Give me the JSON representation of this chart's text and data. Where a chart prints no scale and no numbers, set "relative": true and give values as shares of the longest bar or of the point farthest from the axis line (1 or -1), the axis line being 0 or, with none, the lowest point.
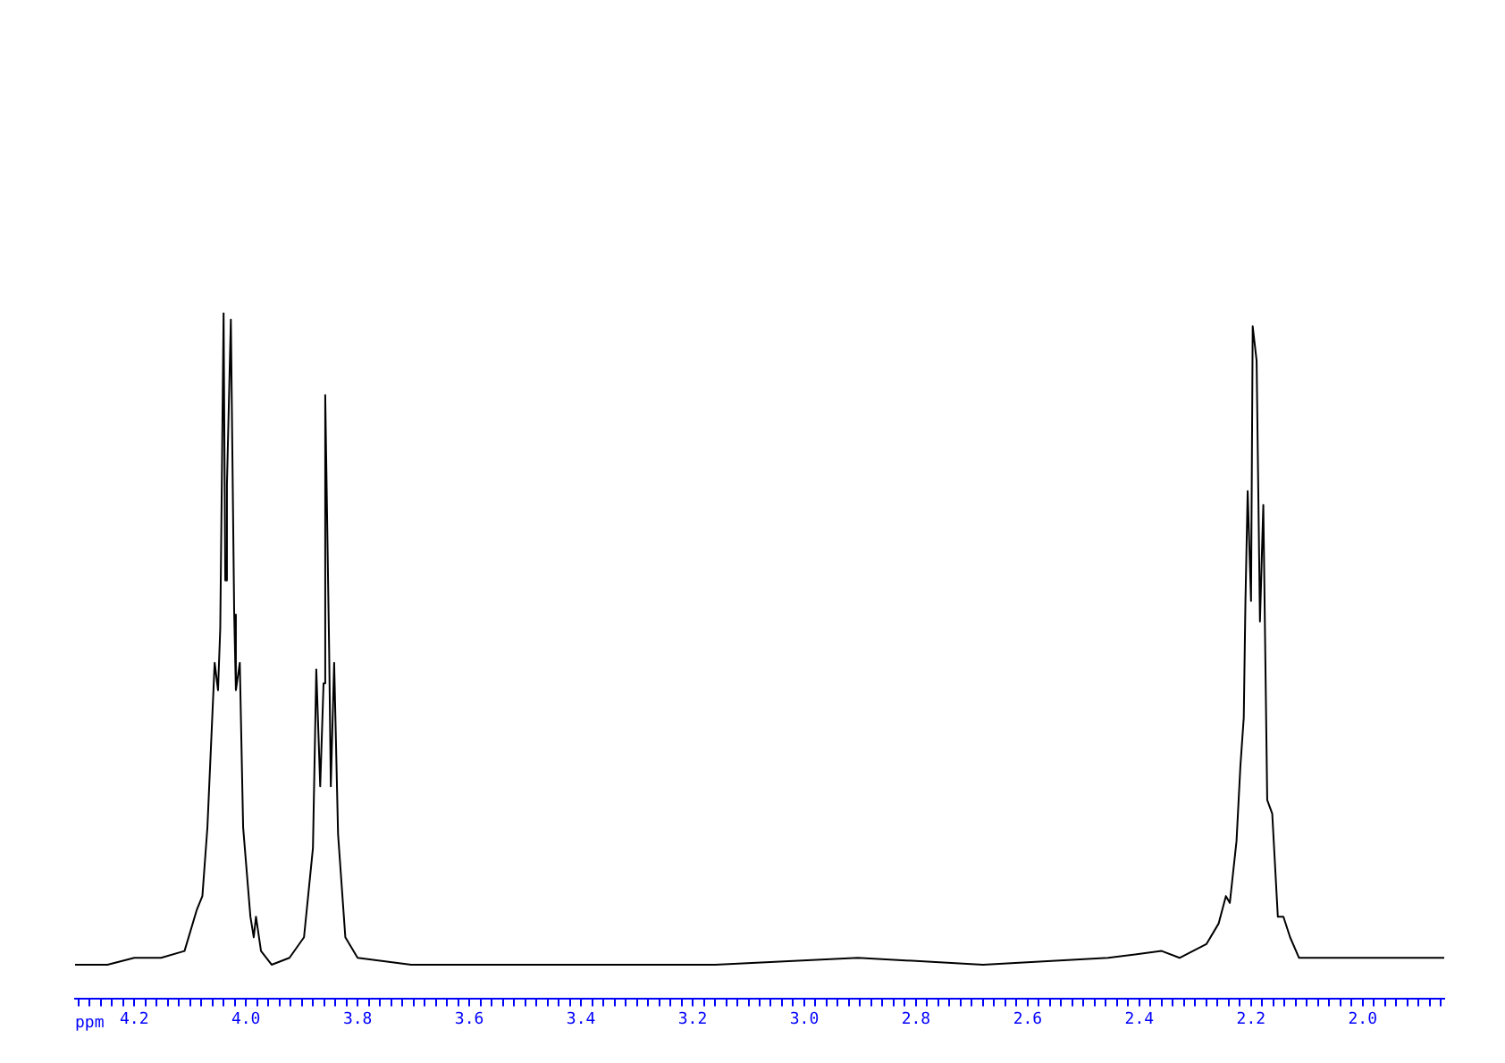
{
  "chart_data": {
    "type": "line",
    "relative": true,
    "xlabel": "ppm",
    "legend": false,
    "grid": false,
    "marker": "none",
    "line_style": "solid",
    "tick_labels": "x",
    "xlim": [
      4.306,
      1.854
    ],
    "xticks": [
      {
        "value": 4.3,
        "label": null
      },
      {
        "value": 4.28,
        "label": null
      },
      {
        "value": 4.26,
        "label": null
      },
      {
        "value": 4.24,
        "label": null
      },
      {
        "value": 4.22,
        "label": null
      },
      4.2,
      {
        "value": 4.18,
        "label": null
      },
      {
        "value": 4.16,
        "label": null
      },
      {
        "value": 4.14,
        "label": null
      },
      {
        "value": 4.12,
        "label": null
      },
      {
        "value": 4.1,
        "label": null
      },
      {
        "value": 4.08,
        "label": null
      },
      {
        "value": 4.06,
        "label": null
      },
      {
        "value": 4.04,
        "label": null
      },
      {
        "value": 4.02,
        "label": null
      },
      {
        "value": 4.0,
        "label": "4.0"
      },
      {
        "value": 3.98,
        "label": null
      },
      {
        "value": 3.96,
        "label": null
      },
      {
        "value": 3.94,
        "label": null
      },
      {
        "value": 3.92,
        "label": null
      },
      {
        "value": 3.9,
        "label": null
      },
      {
        "value": 3.88,
        "label": null
      },
      {
        "value": 3.86,
        "label": null
      },
      {
        "value": 3.84,
        "label": null
      },
      {
        "value": 3.82,
        "label": null
      },
      3.8,
      {
        "value": 3.78,
        "label": null
      },
      {
        "value": 3.76,
        "label": null
      },
      {
        "value": 3.74,
        "label": null
      },
      {
        "value": 3.72,
        "label": null
      },
      {
        "value": 3.7,
        "label": null
      },
      {
        "value": 3.68,
        "label": null
      },
      {
        "value": 3.66,
        "label": null
      },
      {
        "value": 3.64,
        "label": null
      },
      {
        "value": 3.62,
        "label": null
      },
      3.6,
      {
        "value": 3.58,
        "label": null
      },
      {
        "value": 3.56,
        "label": null
      },
      {
        "value": 3.54,
        "label": null
      },
      {
        "value": 3.52,
        "label": null
      },
      {
        "value": 3.5,
        "label": null
      },
      {
        "value": 3.48,
        "label": null
      },
      {
        "value": 3.46,
        "label": null
      },
      {
        "value": 3.44,
        "label": null
      },
      {
        "value": 3.42,
        "label": null
      },
      3.4,
      {
        "value": 3.38,
        "label": null
      },
      {
        "value": 3.36,
        "label": null
      },
      {
        "value": 3.34,
        "label": null
      },
      {
        "value": 3.32,
        "label": null
      },
      {
        "value": 3.3,
        "label": null
      },
      {
        "value": 3.28,
        "label": null
      },
      {
        "value": 3.26,
        "label": null
      },
      {
        "value": 3.24,
        "label": null
      },
      {
        "value": 3.22,
        "label": null
      },
      3.2,
      {
        "value": 3.18,
        "label": null
      },
      {
        "value": 3.16,
        "label": null
      },
      {
        "value": 3.14,
        "label": null
      },
      {
        "value": 3.12,
        "label": null
      },
      {
        "value": 3.1,
        "label": null
      },
      {
        "value": 3.08,
        "label": null
      },
      {
        "value": 3.06,
        "label": null
      },
      {
        "value": 3.04,
        "label": null
      },
      {
        "value": 3.02,
        "label": null
      },
      {
        "value": 3.0,
        "label": "3.0"
      },
      {
        "value": 2.98,
        "label": null
      },
      {
        "value": 2.96,
        "label": null
      },
      {
        "value": 2.94,
        "label": null
      },
      {
        "value": 2.92,
        "label": null
      },
      {
        "value": 2.9,
        "label": null
      },
      {
        "value": 2.88,
        "label": null
      },
      {
        "value": 2.86,
        "label": null
      },
      {
        "value": 2.84,
        "label": null
      },
      {
        "value": 2.82,
        "label": null
      },
      2.8,
      {
        "value": 2.78,
        "label": null
      },
      {
        "value": 2.76,
        "label": null
      },
      {
        "value": 2.74,
        "label": null
      },
      {
        "value": 2.72,
        "label": null
      },
      {
        "value": 2.7,
        "label": null
      },
      {
        "value": 2.68,
        "label": null
      },
      {
        "value": 2.66,
        "label": null
      },
      {
        "value": 2.64,
        "label": null
      },
      {
        "value": 2.62,
        "label": null
      },
      2.6,
      {
        "value": 2.58,
        "label": null
      },
      {
        "value": 2.56,
        "label": null
      },
      {
        "value": 2.54,
        "label": null
      },
      {
        "value": 2.52,
        "label": null
      },
      {
        "value": 2.5,
        "label": null
      },
      {
        "value": 2.48,
        "label": null
      },
      {
        "value": 2.46,
        "label": null
      },
      {
        "value": 2.44,
        "label": null
      },
      {
        "value": 2.42,
        "label": null
      },
      2.4,
      {
        "value": 2.38,
        "label": null
      },
      {
        "value": 2.36,
        "label": null
      },
      {
        "value": 2.34,
        "label": null
      },
      {
        "value": 2.32,
        "label": null
      },
      {
        "value": 2.3,
        "label": null
      },
      {
        "value": 2.28,
        "label": null
      },
      {
        "value": 2.26,
        "label": null
      },
      {
        "value": 2.24,
        "label": null
      },
      {
        "value": 2.22,
        "label": null
      },
      2.2,
      {
        "value": 2.18,
        "label": null
      },
      {
        "value": 2.16,
        "label": null
      },
      {
        "value": 2.14,
        "label": null
      },
      {
        "value": 2.12,
        "label": null
      },
      {
        "value": 2.1,
        "label": null
      },
      {
        "value": 2.08,
        "label": null
      },
      {
        "value": 2.06,
        "label": null
      },
      {
        "value": 2.04,
        "label": null
      },
      {
        "value": 2.02,
        "label": null
      },
      {
        "value": 2.0,
        "label": "2.0"
      },
      {
        "value": 1.98,
        "label": null
      },
      {
        "value": 1.96,
        "label": null
      },
      {
        "value": 1.94,
        "label": null
      },
      {
        "value": 1.92,
        "label": null
      },
      {
        "value": 1.9,
        "label": null
      },
      {
        "value": 1.88,
        "label": null
      },
      {
        "value": 1.86,
        "label": null
      }
    ],
    "series": [
      {
        "color": "#000000",
        "x": [
          4.306,
          4.248,
          4.2,
          4.152,
          4.11,
          4.088,
          4.078,
          4.069,
          4.056,
          4.05,
          4.046,
          4.04,
          4.037,
          4.034,
          4.027,
          4.021,
          4.018,
          4.011,
          4.005,
          3.992,
          3.986,
          3.982,
          3.973,
          3.954,
          3.922,
          3.896,
          3.88,
          3.874,
          3.867,
          3.861,
          3.858,
          3.851,
          3.848,
          3.842,
          3.835,
          3.822,
          3.8,
          3.704,
          3.48,
          3.16,
          2.904,
          2.68,
          2.456,
          2.36,
          2.328,
          2.28,
          2.258,
          2.245,
          2.238,
          2.226,
          2.219,
          2.213,
          2.21,
          2.206,
          2.2,
          2.197,
          2.19,
          2.184,
          2.178,
          2.171,
          2.162,
          2.152,
          2.142,
          2.13,
          2.114,
          2.008,
          1.854
        ],
        "values": [
          0.05,
          0.05,
          0.06,
          0.06,
          0.07,
          0.13,
          0.15,
          0.25,
          0.49,
          0.45,
          0.54,
          1.0,
          0.61,
          0.75,
          0.99,
          0.56,
          0.45,
          0.49,
          0.25,
          0.12,
          0.09,
          0.12,
          0.07,
          0.05,
          0.06,
          0.09,
          0.22,
          0.48,
          0.31,
          0.46,
          0.88,
          0.51,
          0.31,
          0.49,
          0.24,
          0.09,
          0.06,
          0.05,
          0.05,
          0.05,
          0.06,
          0.05,
          0.06,
          0.07,
          0.06,
          0.08,
          0.11,
          0.15,
          0.14,
          0.23,
          0.34,
          0.41,
          0.58,
          0.74,
          0.58,
          0.98,
          0.93,
          0.55,
          0.72,
          0.29,
          0.27,
          0.12,
          0.12,
          0.09,
          0.06,
          0.06,
          0.06
        ]
      }
    ]
  }
}
